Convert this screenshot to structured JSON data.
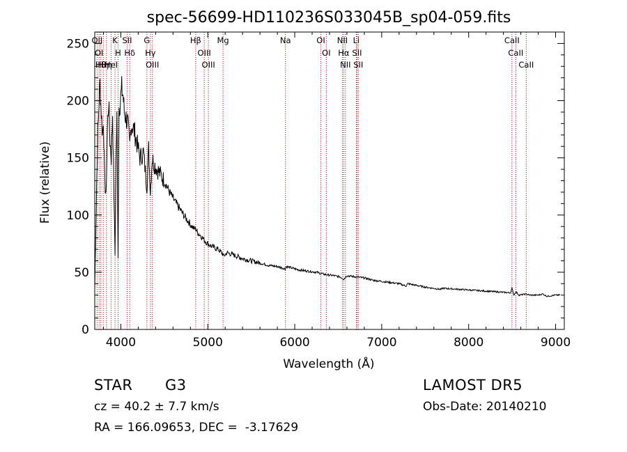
{
  "chart_data": {
    "type": "line",
    "title": "spec-56699-HD110236S033045B_sp04-059.fits",
    "xlabel": "Wavelength (Å)",
    "ylabel": "Flux (relative)",
    "xlim": [
      3700,
      9100
    ],
    "ylim": [
      0,
      260
    ],
    "xticks": [
      4000,
      5000,
      6000,
      7000,
      8000,
      9000
    ],
    "yticks": [
      0,
      50,
      100,
      150,
      200,
      250
    ],
    "grid": false,
    "series": [
      {
        "x": [
          3700,
          3720,
          3735,
          3750,
          3760,
          3775,
          3790,
          3800,
          3815,
          3830,
          3845,
          3860,
          3875,
          3890,
          3905,
          3920,
          3933,
          3945,
          3955,
          3968,
          3980,
          3995,
          4010,
          4025,
          4040,
          4060,
          4080,
          4102,
          4120,
          4150,
          4180,
          4220,
          4260,
          4300,
          4320,
          4340,
          4360,
          4380,
          4420,
          4460,
          4500,
          4560,
          4620,
          4680,
          4740,
          4800,
          4840,
          4861,
          4880,
          4920,
          4960,
          5000,
          5060,
          5120,
          5172,
          5183,
          5220,
          5300,
          5400,
          5500,
          5600,
          5700,
          5800,
          5890,
          5900,
          5950,
          6050,
          6150,
          6250,
          6350,
          6450,
          6520,
          6563,
          6600,
          6700,
          6800,
          6900,
          7000,
          7200,
          7280,
          7300,
          7500,
          7680,
          7700,
          7900,
          8100,
          8300,
          8480,
          8498,
          8520,
          8542,
          8580,
          8662,
          8700,
          8800,
          8850,
          8900,
          9000,
          9050
        ],
        "values": [
          35,
          120,
          170,
          200,
          215,
          190,
          170,
          185,
          130,
          115,
          175,
          200,
          165,
          150,
          190,
          120,
          65,
          150,
          185,
          65,
          195,
          200,
          210,
          205,
          190,
          185,
          180,
          160,
          180,
          175,
          165,
          150,
          155,
          125,
          158,
          120,
          150,
          145,
          140,
          135,
          130,
          120,
          112,
          105,
          98,
          92,
          88,
          88,
          85,
          82,
          78,
          75,
          72,
          70,
          66,
          64,
          67,
          65,
          62,
          60,
          58,
          56,
          55,
          53,
          55,
          54,
          52,
          51,
          50,
          48,
          47,
          46,
          44,
          47,
          46,
          45,
          43,
          42,
          40,
          38,
          40,
          37,
          35,
          36,
          35,
          34,
          33,
          32,
          36,
          30,
          33,
          30,
          31,
          30,
          30,
          31,
          29,
          30,
          30
        ],
        "color": "#000000"
      }
    ],
    "lines": [
      {
        "x": 3727,
        "labels": [
          "OII"
        ]
      },
      {
        "x": 3750,
        "labels": [
          "OI"
        ]
      },
      {
        "x": 3770,
        "labels": [
          "Hθ"
        ]
      },
      {
        "x": 3798,
        "labels": [
          "Hη"
        ]
      },
      {
        "x": 3835,
        "labels": [
          "Hη"
        ]
      },
      {
        "x": 3889,
        "labels": [
          "HeI"
        ]
      },
      {
        "x": 3933,
        "labels": [
          "K"
        ]
      },
      {
        "x": 3968,
        "labels": [
          "H"
        ]
      },
      {
        "x": 4072,
        "labels": [
          "SII"
        ]
      },
      {
        "x": 4102,
        "labels": [
          "Hδ"
        ]
      },
      {
        "x": 4300,
        "labels": [
          "G"
        ]
      },
      {
        "x": 4340,
        "labels": [
          "Hγ"
        ]
      },
      {
        "x": 4363,
        "labels": [
          "OIII"
        ]
      },
      {
        "x": 4861,
        "labels": [
          "Hβ"
        ]
      },
      {
        "x": 4959,
        "labels": [
          "OIII"
        ]
      },
      {
        "x": 5007,
        "labels": [
          "OIII"
        ]
      },
      {
        "x": 5175,
        "labels": [
          "Mg"
        ]
      },
      {
        "x": 5893,
        "labels": [
          "Na"
        ]
      },
      {
        "x": 6300,
        "labels": [
          "OI"
        ]
      },
      {
        "x": 6363,
        "labels": [
          "OI"
        ]
      },
      {
        "x": 6548,
        "labels": [
          "NII"
        ]
      },
      {
        "x": 6563,
        "labels": [
          "Hα"
        ]
      },
      {
        "x": 6583,
        "labels": [
          "NII"
        ]
      },
      {
        "x": 6708,
        "labels": [
          "Li"
        ]
      },
      {
        "x": 6716,
        "labels": [
          "SII"
        ]
      },
      {
        "x": 6731,
        "labels": [
          "SII"
        ]
      },
      {
        "x": 8498,
        "labels": [
          "CaII"
        ]
      },
      {
        "x": 8542,
        "labels": [
          "CaII"
        ]
      },
      {
        "x": 8662,
        "labels": [
          "CaII"
        ]
      }
    ]
  },
  "info": {
    "object_class": "STAR",
    "subclass": "G3",
    "survey": "LAMOST DR5",
    "cz": "cz = 40.2 ± 7.7 km/s",
    "obs_date": "Obs-Date: 20140210",
    "coords": "RA = 166.09653, DEC =  -3.17629"
  }
}
